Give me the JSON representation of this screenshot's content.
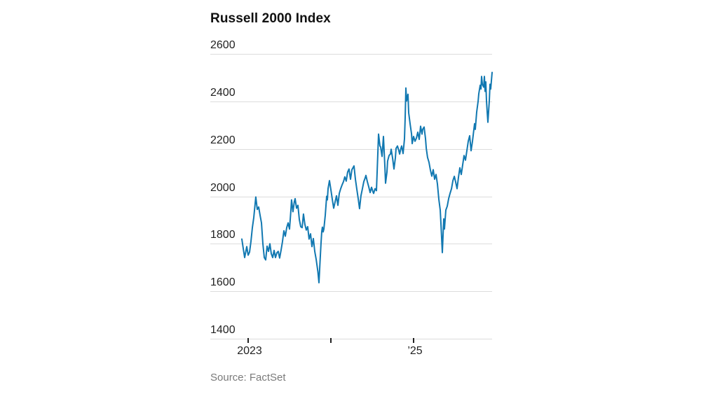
{
  "page": {
    "background": "#ffffff"
  },
  "chart": {
    "title": "Russell 2000 Index",
    "source": "Source: FactSet",
    "line_color": "#1178b1",
    "grid_color": "#dcdcdc",
    "tick_color": "#222222",
    "axis_label_color": "#222222",
    "source_color": "#7a7a7a"
  },
  "chart_data": {
    "type": "line",
    "title": "Russell 2000 Index",
    "xlabel": "",
    "ylabel": "",
    "grid": "horizontal",
    "legend": "none",
    "ylim": [
      1400,
      2600
    ],
    "xlim": [
      2022.924,
      2025.949
    ],
    "y_ticks": [
      1400,
      1600,
      1800,
      2000,
      2200,
      2400,
      2600
    ],
    "x_ticks": [
      {
        "value": 2023,
        "label": "2023"
      },
      {
        "value": 2024,
        "label": ""
      },
      {
        "value": 2025,
        "label": "’25"
      }
    ],
    "series": [
      {
        "name": "Russell 2000 Index",
        "points": [
          [
            2022.924,
            1820
          ],
          [
            2022.941,
            1780
          ],
          [
            2022.958,
            1742
          ],
          [
            2022.983,
            1788
          ],
          [
            2023.0,
            1752
          ],
          [
            2023.017,
            1765
          ],
          [
            2023.034,
            1810
          ],
          [
            2023.051,
            1868
          ],
          [
            2023.068,
            1910
          ],
          [
            2023.093,
            1997
          ],
          [
            2023.11,
            1945
          ],
          [
            2023.127,
            1955
          ],
          [
            2023.144,
            1920
          ],
          [
            2023.161,
            1888
          ],
          [
            2023.178,
            1800
          ],
          [
            2023.195,
            1742
          ],
          [
            2023.212,
            1732
          ],
          [
            2023.229,
            1790
          ],
          [
            2023.246,
            1768
          ],
          [
            2023.263,
            1800
          ],
          [
            2023.28,
            1758
          ],
          [
            2023.297,
            1742
          ],
          [
            2023.314,
            1772
          ],
          [
            2023.331,
            1742
          ],
          [
            2023.348,
            1762
          ],
          [
            2023.364,
            1768
          ],
          [
            2023.381,
            1740
          ],
          [
            2023.398,
            1772
          ],
          [
            2023.415,
            1808
          ],
          [
            2023.432,
            1855
          ],
          [
            2023.449,
            1832
          ],
          [
            2023.466,
            1868
          ],
          [
            2023.483,
            1888
          ],
          [
            2023.5,
            1862
          ],
          [
            2023.517,
            1942
          ],
          [
            2023.525,
            1985
          ],
          [
            2023.534,
            1958
          ],
          [
            2023.542,
            1935
          ],
          [
            2023.559,
            1978
          ],
          [
            2023.568,
            1990
          ],
          [
            2023.585,
            1950
          ],
          [
            2023.602,
            1962
          ],
          [
            2023.619,
            1902
          ],
          [
            2023.636,
            1872
          ],
          [
            2023.653,
            1868
          ],
          [
            2023.669,
            1925
          ],
          [
            2023.686,
            1882
          ],
          [
            2023.703,
            1858
          ],
          [
            2023.72,
            1872
          ],
          [
            2023.737,
            1820
          ],
          [
            2023.754,
            1842
          ],
          [
            2023.771,
            1788
          ],
          [
            2023.788,
            1822
          ],
          [
            2023.805,
            1768
          ],
          [
            2023.822,
            1735
          ],
          [
            2023.843,
            1682
          ],
          [
            2023.856,
            1636
          ],
          [
            2023.869,
            1722
          ],
          [
            2023.881,
            1800
          ],
          [
            2023.89,
            1852
          ],
          [
            2023.898,
            1870
          ],
          [
            2023.907,
            1850
          ],
          [
            2023.915,
            1862
          ],
          [
            2023.932,
            1920
          ],
          [
            2023.949,
            2000
          ],
          [
            2023.958,
            1985
          ],
          [
            2023.966,
            2032
          ],
          [
            2023.983,
            2066
          ],
          [
            2024.0,
            2028
          ],
          [
            2024.017,
            1988
          ],
          [
            2024.034,
            1950
          ],
          [
            2024.051,
            1976
          ],
          [
            2024.068,
            2002
          ],
          [
            2024.085,
            1962
          ],
          [
            2024.102,
            2012
          ],
          [
            2024.119,
            2032
          ],
          [
            2024.136,
            2048
          ],
          [
            2024.153,
            2062
          ],
          [
            2024.169,
            2082
          ],
          [
            2024.186,
            2064
          ],
          [
            2024.203,
            2102
          ],
          [
            2024.22,
            2115
          ],
          [
            2024.237,
            2072
          ],
          [
            2024.254,
            2112
          ],
          [
            2024.28,
            2128
          ],
          [
            2024.297,
            2072
          ],
          [
            2024.314,
            2030
          ],
          [
            2024.331,
            1990
          ],
          [
            2024.347,
            1948
          ],
          [
            2024.364,
            2002
          ],
          [
            2024.381,
            2032
          ],
          [
            2024.398,
            2062
          ],
          [
            2024.415,
            2078
          ],
          [
            2024.424,
            2088
          ],
          [
            2024.441,
            2062
          ],
          [
            2024.458,
            2040
          ],
          [
            2024.475,
            2016
          ],
          [
            2024.492,
            2038
          ],
          [
            2024.508,
            2020
          ],
          [
            2024.517,
            2012
          ],
          [
            2024.534,
            2032
          ],
          [
            2024.551,
            2024
          ],
          [
            2024.559,
            2102
          ],
          [
            2024.568,
            2182
          ],
          [
            2024.576,
            2262
          ],
          [
            2024.593,
            2212
          ],
          [
            2024.602,
            2208
          ],
          [
            2024.619,
            2168
          ],
          [
            2024.636,
            2252
          ],
          [
            2024.653,
            2122
          ],
          [
            2024.661,
            2055
          ],
          [
            2024.678,
            2102
          ],
          [
            2024.686,
            2148
          ],
          [
            2024.703,
            2172
          ],
          [
            2024.72,
            2178
          ],
          [
            2024.729,
            2198
          ],
          [
            2024.746,
            2162
          ],
          [
            2024.763,
            2115
          ],
          [
            2024.78,
            2162
          ],
          [
            2024.788,
            2202
          ],
          [
            2024.805,
            2212
          ],
          [
            2024.822,
            2192
          ],
          [
            2024.831,
            2178
          ],
          [
            2024.847,
            2202
          ],
          [
            2024.856,
            2212
          ],
          [
            2024.873,
            2180
          ],
          [
            2024.89,
            2242
          ],
          [
            2024.898,
            2332
          ],
          [
            2024.907,
            2456
          ],
          [
            2024.915,
            2402
          ],
          [
            2024.932,
            2430
          ],
          [
            2024.941,
            2352
          ],
          [
            2024.958,
            2306
          ],
          [
            2024.975,
            2262
          ],
          [
            2024.983,
            2222
          ],
          [
            2025.0,
            2252
          ],
          [
            2025.017,
            2232
          ],
          [
            2025.034,
            2245
          ],
          [
            2025.051,
            2270
          ],
          [
            2025.068,
            2240
          ],
          [
            2025.085,
            2295
          ],
          [
            2025.102,
            2262
          ],
          [
            2025.11,
            2282
          ],
          [
            2025.127,
            2292
          ],
          [
            2025.144,
            2243
          ],
          [
            2025.153,
            2202
          ],
          [
            2025.169,
            2164
          ],
          [
            2025.186,
            2143
          ],
          [
            2025.203,
            2110
          ],
          [
            2025.22,
            2085
          ],
          [
            2025.237,
            2112
          ],
          [
            2025.254,
            2072
          ],
          [
            2025.271,
            2092
          ],
          [
            2025.288,
            2052
          ],
          [
            2025.305,
            1988
          ],
          [
            2025.322,
            1942
          ],
          [
            2025.331,
            1880
          ],
          [
            2025.347,
            1763
          ],
          [
            2025.364,
            1905
          ],
          [
            2025.373,
            1862
          ],
          [
            2025.39,
            1942
          ],
          [
            2025.407,
            1958
          ],
          [
            2025.424,
            1990
          ],
          [
            2025.441,
            2012
          ],
          [
            2025.458,
            2032
          ],
          [
            2025.475,
            2066
          ],
          [
            2025.492,
            2084
          ],
          [
            2025.508,
            2060
          ],
          [
            2025.525,
            2032
          ],
          [
            2025.542,
            2080
          ],
          [
            2025.559,
            2120
          ],
          [
            2025.576,
            2092
          ],
          [
            2025.593,
            2132
          ],
          [
            2025.61,
            2172
          ],
          [
            2025.627,
            2152
          ],
          [
            2025.644,
            2192
          ],
          [
            2025.661,
            2232
          ],
          [
            2025.678,
            2255
          ],
          [
            2025.695,
            2192
          ],
          [
            2025.712,
            2232
          ],
          [
            2025.729,
            2282
          ],
          [
            2025.737,
            2306
          ],
          [
            2025.746,
            2282
          ],
          [
            2025.763,
            2355
          ],
          [
            2025.78,
            2402
          ],
          [
            2025.788,
            2432
          ],
          [
            2025.805,
            2468
          ],
          [
            2025.814,
            2452
          ],
          [
            2025.822,
            2505
          ],
          [
            2025.831,
            2472
          ],
          [
            2025.847,
            2460
          ],
          [
            2025.856,
            2505
          ],
          [
            2025.864,
            2442
          ],
          [
            2025.873,
            2482
          ],
          [
            2025.881,
            2402
          ],
          [
            2025.89,
            2355
          ],
          [
            2025.898,
            2312
          ],
          [
            2025.915,
            2402
          ],
          [
            2025.924,
            2472
          ],
          [
            2025.932,
            2452
          ],
          [
            2025.949,
            2522
          ]
        ]
      }
    ]
  }
}
